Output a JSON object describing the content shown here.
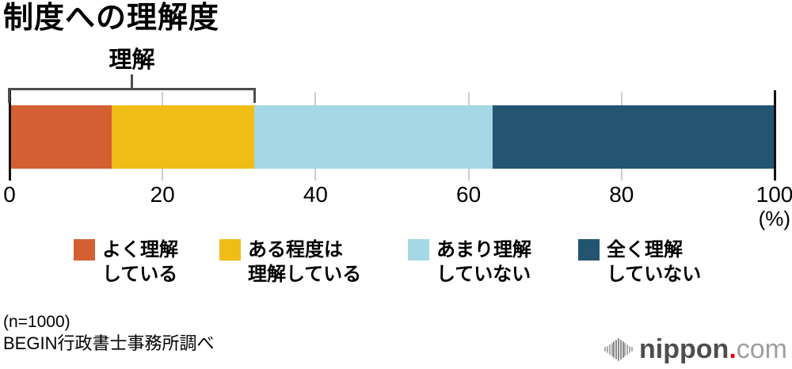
{
  "title": "制度への理解度",
  "annotation": {
    "label": "理解",
    "covers_series": [
      0,
      1
    ],
    "span_percent": [
      0,
      32.0
    ]
  },
  "chart_data": {
    "type": "bar",
    "variant": "horizontal-stacked-100pct",
    "title": "制度への理解度",
    "categories": [
      "制度への理解度"
    ],
    "series": [
      {
        "name": "よく理解している",
        "label_lines": [
          "よく理解",
          "している"
        ],
        "value": 13.4,
        "color": "#d45f32"
      },
      {
        "name": "ある程度は理解している",
        "label_lines": [
          "ある程度は",
          "理解している"
        ],
        "value": 18.6,
        "color": "#f0bc16"
      },
      {
        "name": "あまり理解していない",
        "label_lines": [
          "あまり理解",
          "していない"
        ],
        "value": 31.1,
        "color": "#a4d8e4"
      },
      {
        "name": "全く理解していない",
        "label_lines": [
          "全く理解",
          "していない"
        ],
        "value": 36.9,
        "color": "#235570"
      }
    ],
    "xlim": [
      0,
      100
    ],
    "x_ticks": [
      0,
      20,
      40,
      60,
      80,
      100
    ],
    "unit_label": "(%)",
    "grid": true,
    "legend_position": "bottom"
  },
  "footer": {
    "sample": "(n=1000)",
    "source": "BEGIN行政書士事務所調べ"
  },
  "logo": {
    "name": "nippon.com",
    "text_main": "nippon",
    "text_dot": ".",
    "text_tld": "com",
    "dot_color": "#e60012"
  },
  "colors": {
    "bracket": "#4d4d4d",
    "gridline": "#cccccc",
    "axis_end": "#111111"
  }
}
